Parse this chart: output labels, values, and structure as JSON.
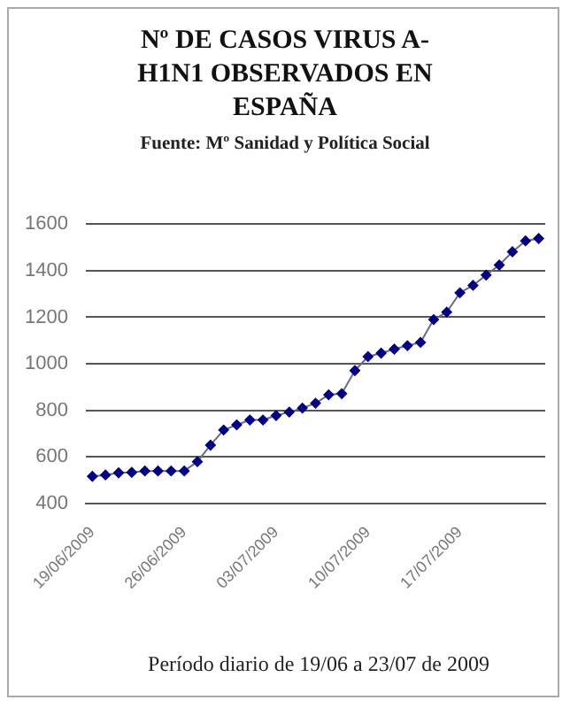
{
  "chart_data": {
    "type": "line",
    "title": "Nº DE CASOS VIRUS A-H1N1 OBSERVADOS EN ESPAÑA",
    "subtitle": "Fuente: Mº Sanidad y Política Social",
    "xlabel": "Período diario de 19/06 a 23/07 de 2009",
    "categories": [
      "19/06/2009",
      null,
      null,
      null,
      null,
      null,
      null,
      "26/06/2009",
      null,
      null,
      null,
      null,
      null,
      null,
      "03/07/2009",
      null,
      null,
      null,
      null,
      null,
      null,
      "10/07/2009",
      null,
      null,
      null,
      null,
      null,
      null,
      "17/07/2009",
      null,
      null,
      null,
      null,
      null,
      null
    ],
    "series": [
      {
        "color": "#000080",
        "values": [
          517,
          523,
          532,
          534,
          540,
          540,
          540,
          540,
          580,
          651,
          716,
          738,
          759,
          759,
          778,
          793,
          810,
          831,
          867,
          872,
          971,
          1031,
          1046,
          1063,
          1078,
          1092,
          1190,
          1222,
          1305,
          1337,
          1381,
          1424,
          1481,
          1528,
          1538
        ]
      }
    ],
    "ylim": [
      400,
      1600
    ],
    "yticks": [
      400,
      600,
      800,
      1000,
      1200,
      1400,
      1600
    ],
    "grid": "y",
    "legend": false,
    "marker": "diamond",
    "line_style": "solid"
  }
}
